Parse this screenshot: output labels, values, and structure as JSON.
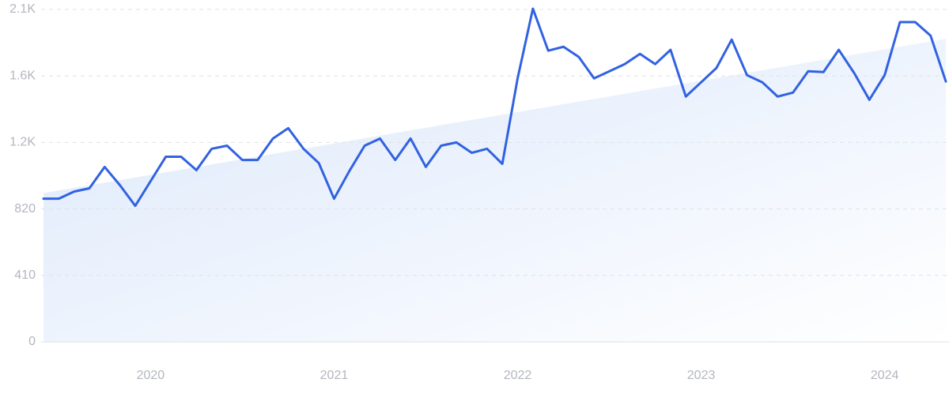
{
  "chart_data": {
    "type": "line",
    "categories": [
      null,
      null,
      null,
      null,
      null,
      null,
      null,
      "2020",
      null,
      null,
      null,
      null,
      null,
      null,
      null,
      null,
      null,
      null,
      null,
      "2021",
      null,
      null,
      null,
      null,
      null,
      null,
      null,
      null,
      null,
      null,
      null,
      "2022",
      null,
      null,
      null,
      null,
      null,
      null,
      null,
      null,
      null,
      null,
      null,
      "2023",
      null,
      null,
      null,
      null,
      null,
      null,
      null,
      null,
      null,
      null,
      null,
      "2024",
      null,
      null,
      null,
      null
    ],
    "values": [
      883,
      883,
      927,
      947,
      1079,
      966,
      839,
      991,
      1142,
      1142,
      1059,
      1191,
      1210,
      1122,
      1122,
      1254,
      1318,
      1191,
      1103,
      883,
      1054,
      1210,
      1254,
      1122,
      1254,
      1079,
      1210,
      1230,
      1166,
      1191,
      1098,
      1625,
      2055,
      1796,
      1820,
      1757,
      1625,
      1669,
      1713,
      1776,
      1713,
      1801,
      1513,
      1601,
      1689,
      1864,
      1645,
      1601,
      1513,
      1537,
      1669,
      1664,
      1801,
      1659,
      1493,
      1645,
      1972,
      1972,
      1889,
      1606
    ],
    "color": "#3162e0",
    "trend": [
      917,
      1869
    ],
    "trend_color": "#dce8fb",
    "ylim": [
      0,
      2050
    ],
    "yticks": [
      0,
      410,
      820,
      {
        "value": 1230,
        "label": "1.2K"
      },
      {
        "value": 1640,
        "label": "1.6K"
      },
      {
        "value": 2050,
        "label": "2.1K"
      }
    ],
    "grid": true
  }
}
